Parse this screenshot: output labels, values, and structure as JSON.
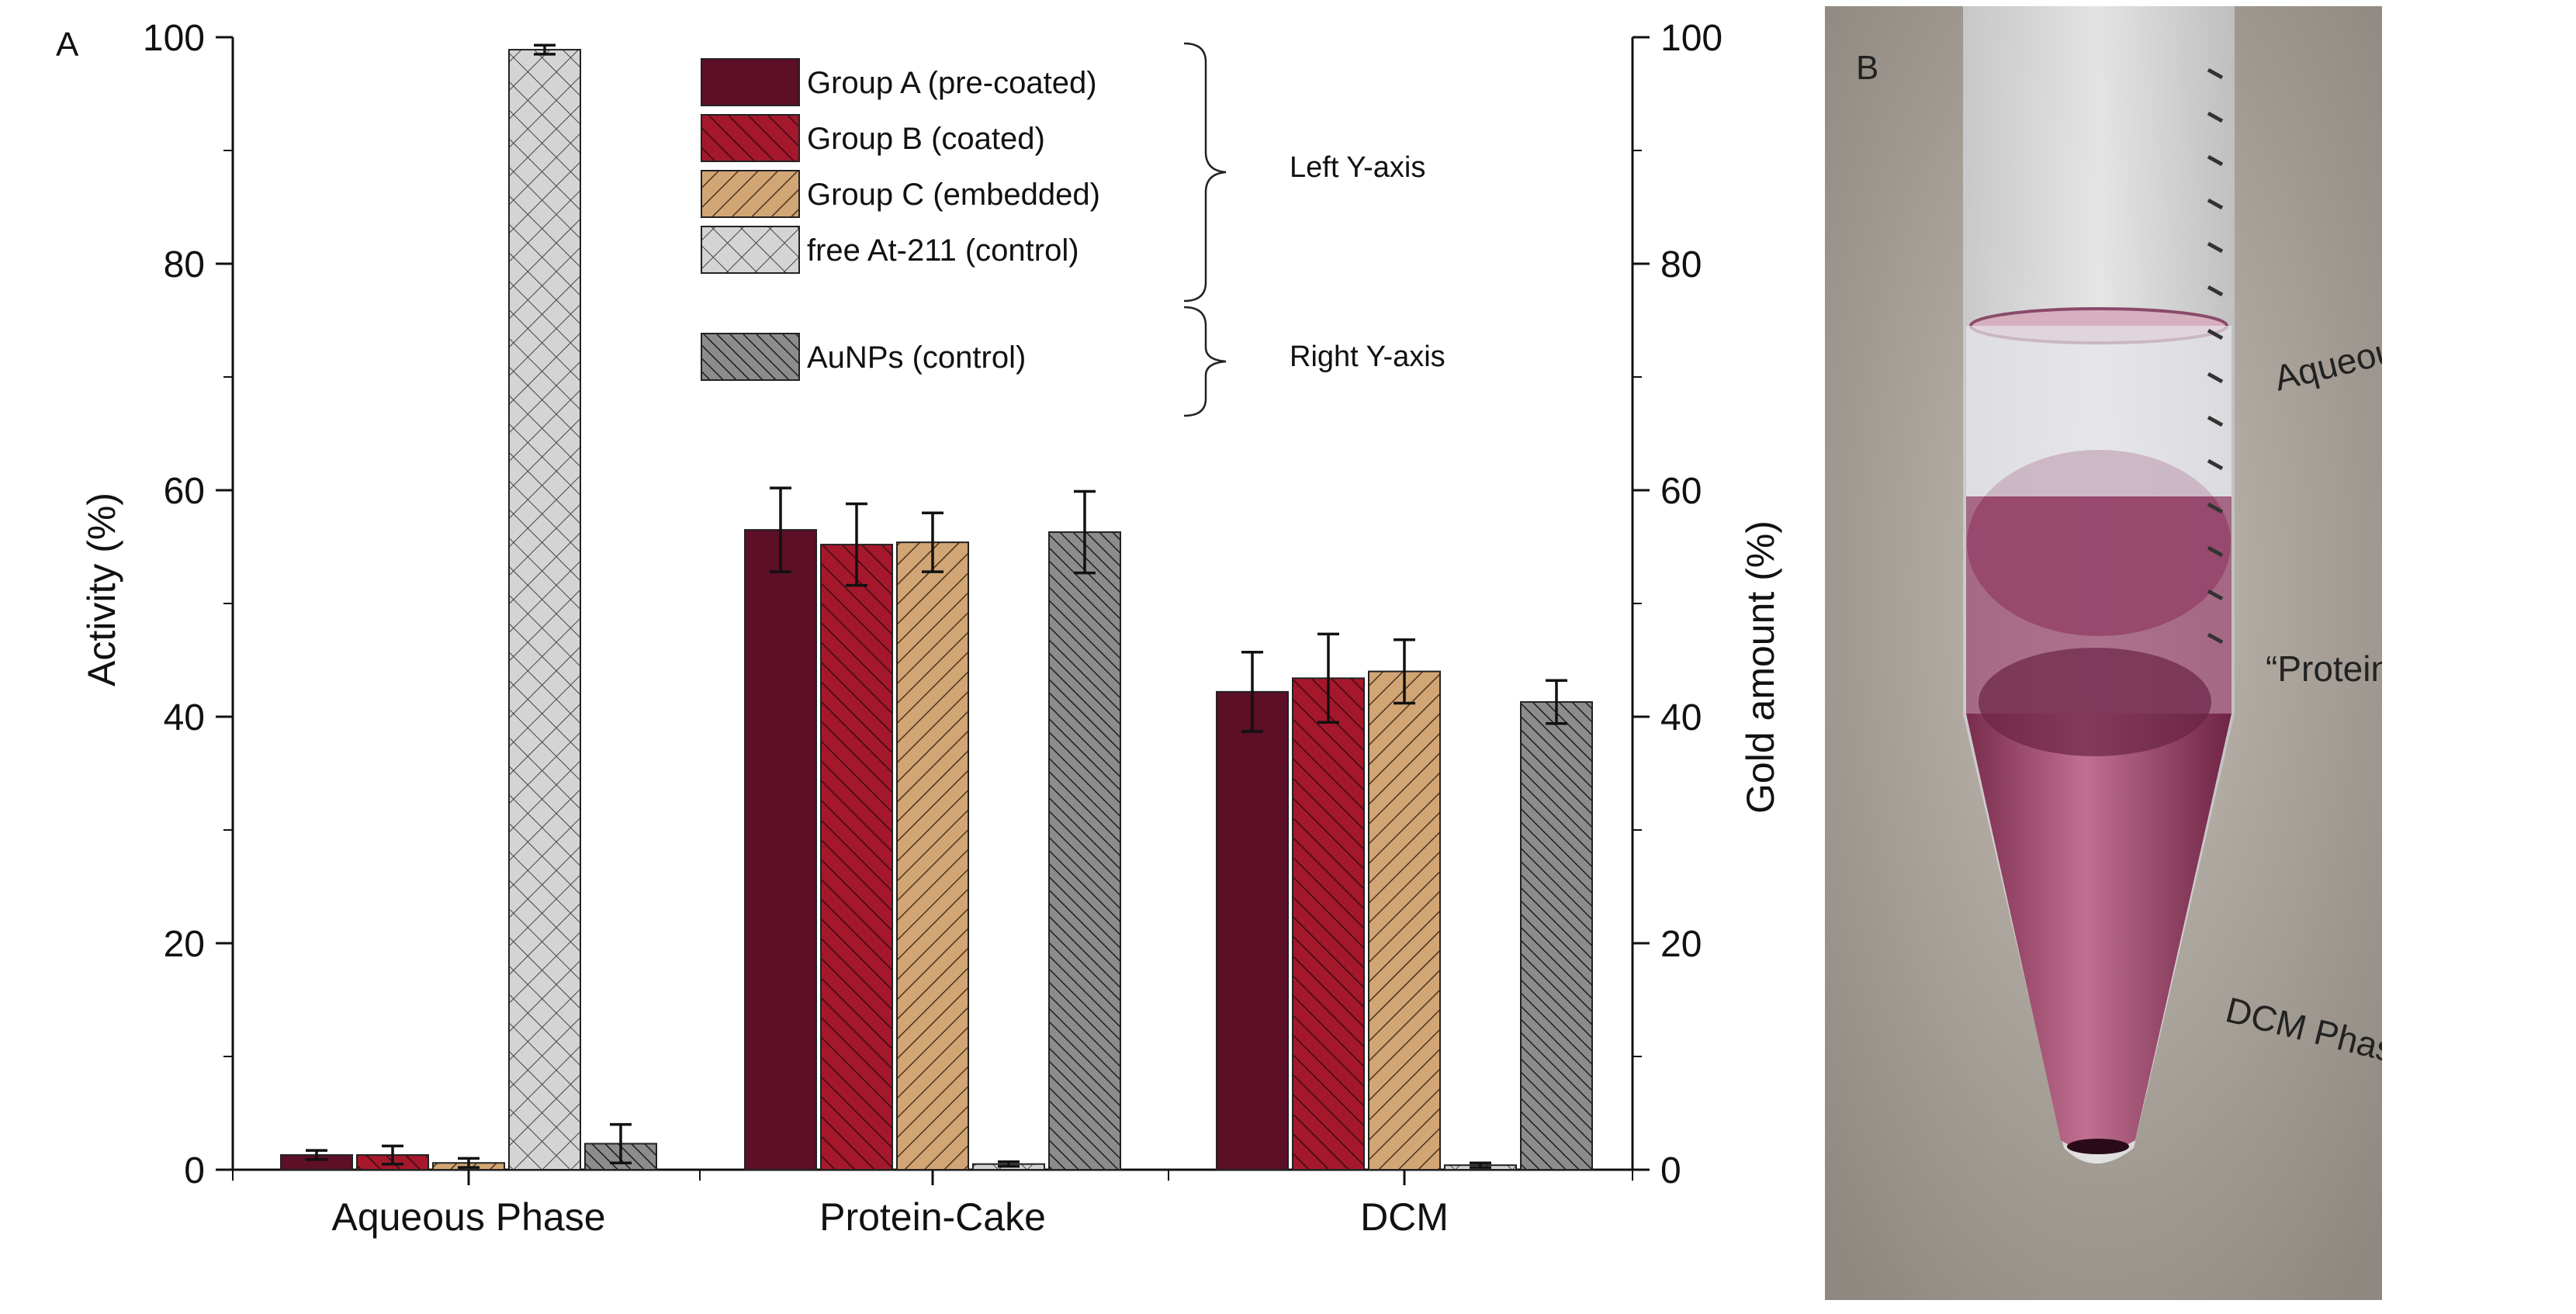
{
  "chart_data": {
    "type": "bar",
    "panel_label": "A",
    "categories": [
      "Aqueous Phase",
      "Protein-Cake",
      "DCM"
    ],
    "ylabel": "Activity (%)",
    "y2label": "Gold amount (%)",
    "ylim": [
      0,
      100
    ],
    "yticks": [
      0,
      20,
      40,
      60,
      80,
      100
    ],
    "series": [
      {
        "name": "Group A (pre-coated)",
        "axis": "left",
        "values": [
          1.3,
          56.5,
          42.2
        ],
        "errors": [
          0.4,
          3.7,
          3.5
        ],
        "color": "#5c0f26",
        "pattern": "none"
      },
      {
        "name": "Group B (coated)",
        "axis": "left",
        "values": [
          1.3,
          55.2,
          43.4
        ],
        "errors": [
          0.8,
          3.6,
          3.9
        ],
        "color": "#a5182c",
        "pattern": "diag-right"
      },
      {
        "name": "Group C (embedded)",
        "axis": "left",
        "values": [
          0.6,
          55.4,
          44.0
        ],
        "errors": [
          0.4,
          2.6,
          2.8
        ],
        "color": "#d2a574",
        "pattern": "diag-left"
      },
      {
        "name": "free At-211 (control)",
        "axis": "left",
        "values": [
          98.9,
          0.5,
          0.4
        ],
        "errors": [
          0.4,
          0.2,
          0.2
        ],
        "color": "#d0d0d0",
        "pattern": "cross"
      },
      {
        "name": "AuNPs (control)",
        "axis": "right",
        "values": [
          2.3,
          56.3,
          41.3
        ],
        "errors": [
          1.7,
          3.6,
          1.9
        ],
        "color": "#8c8c8c",
        "pattern": "diag-right-dense"
      }
    ],
    "legend_groups": [
      {
        "label": "Left Y-axis",
        "series": [
          0,
          1,
          2,
          3
        ]
      },
      {
        "label": "Right Y-axis",
        "series": [
          4
        ]
      }
    ],
    "legend_position": "top-center"
  },
  "photo": {
    "panel_label": "B",
    "labels": {
      "aqueous": "Aqueous Phase",
      "cake": "“Protein-Cake”",
      "dcm": "DCM Phase"
    },
    "colors": {
      "background": "#b5aea6",
      "liquid": "#8a3a5c",
      "cake": "#8b3d62",
      "glass": "#dcdcde"
    }
  }
}
